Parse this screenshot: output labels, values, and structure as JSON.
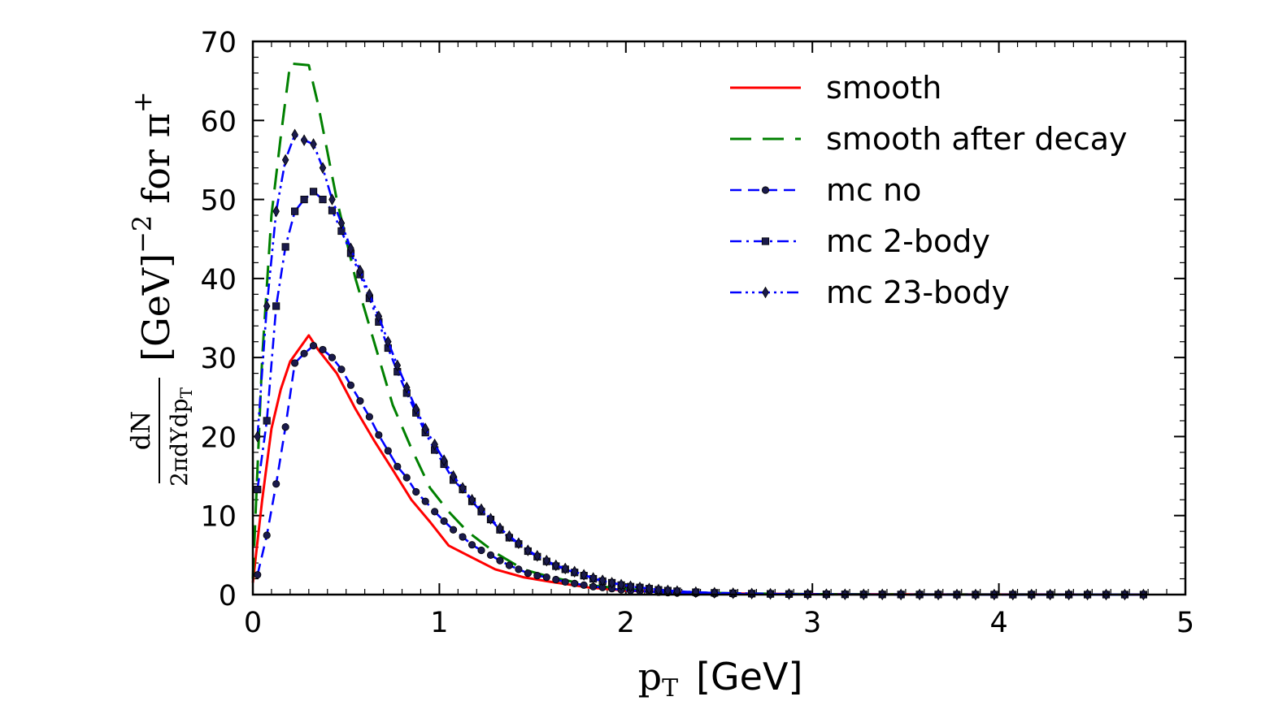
{
  "chart_data": {
    "type": "line",
    "xlabel": {
      "symbol": "p",
      "sub": "T",
      "unit": "[GeV]"
    },
    "ylabel": {
      "num": "dN",
      "den_main": "2πdYdp",
      "den_sub": "T",
      "unit": "[GeV]",
      "exp": "−2",
      "suffix": "for π",
      "suffix_sup": "+"
    },
    "xlim": [
      0,
      5
    ],
    "ylim": [
      0,
      70
    ],
    "xticks": [
      "0",
      "1",
      "2",
      "3",
      "4",
      "5"
    ],
    "yticks": [
      "0",
      "10",
      "20",
      "30",
      "40",
      "50",
      "60",
      "70"
    ],
    "grid": false,
    "legend_position": "top-right",
    "series": [
      {
        "name": "smooth",
        "color": "#ff0000",
        "style": "solid",
        "marker": "none",
        "x": [
          0.0,
          0.05,
          0.1,
          0.15,
          0.2,
          0.3,
          0.35,
          0.45,
          0.55,
          0.65,
          0.75,
          0.85,
          0.95,
          1.05,
          1.15,
          1.3,
          1.45,
          1.6,
          1.8,
          2.0,
          2.3,
          2.6,
          3.0,
          3.5,
          4.0,
          4.5,
          4.75
        ],
        "y": [
          1.5,
          12.0,
          21.0,
          26.0,
          29.5,
          32.8,
          31.0,
          28.0,
          23.5,
          19.5,
          15.8,
          12.0,
          9.2,
          6.2,
          5.0,
          3.2,
          2.2,
          1.6,
          0.9,
          0.5,
          0.25,
          0.12,
          0.05,
          0.02,
          0.01,
          0.0,
          0.0
        ]
      },
      {
        "name": "smooth after decay",
        "color": "#008000",
        "style": "longdash",
        "marker": "none",
        "x": [
          0.0,
          0.05,
          0.1,
          0.15,
          0.2,
          0.3,
          0.35,
          0.45,
          0.55,
          0.65,
          0.75,
          0.85,
          0.95,
          1.05,
          1.15,
          1.3,
          1.45,
          1.6,
          1.8,
          2.0,
          2.3,
          2.6,
          3.0,
          3.5,
          4.0,
          4.5,
          4.75
        ],
        "y": [
          2.0,
          30.0,
          48.0,
          58.0,
          67.2,
          67.0,
          62.0,
          50.0,
          40.0,
          32.0,
          24.0,
          18.5,
          13.5,
          10.5,
          8.0,
          5.3,
          3.2,
          2.2,
          1.2,
          0.7,
          0.3,
          0.15,
          0.05,
          0.02,
          0.01,
          0.0,
          0.0
        ]
      },
      {
        "name": "mc no",
        "color": "#0000ff",
        "style": "dash",
        "marker": "circle",
        "x": [
          0.025,
          0.075,
          0.125,
          0.175,
          0.225,
          0.275,
          0.325,
          0.375,
          0.425,
          0.475,
          0.525,
          0.575,
          0.625,
          0.675,
          0.725,
          0.775,
          0.825,
          0.875,
          0.925,
          0.975,
          1.025,
          1.075,
          1.125,
          1.175,
          1.225,
          1.275,
          1.325,
          1.375,
          1.425,
          1.475,
          1.525,
          1.575,
          1.625,
          1.675,
          1.725,
          1.775,
          1.825,
          1.875,
          1.925,
          1.975,
          2.025,
          2.075,
          2.125,
          2.175,
          2.225,
          2.275,
          2.375,
          2.475,
          2.575,
          2.675,
          2.775,
          2.875,
          2.975,
          3.075,
          3.175,
          3.275,
          3.375,
          3.475,
          3.575,
          3.675,
          3.775,
          3.875,
          3.975,
          4.075,
          4.175,
          4.275,
          4.375,
          4.475,
          4.575,
          4.675,
          4.775
        ],
        "y": [
          2.5,
          7.5,
          14.0,
          21.2,
          29.3,
          30.5,
          31.5,
          31.0,
          30.0,
          28.5,
          26.5,
          24.5,
          22.5,
          20.2,
          18.2,
          16.2,
          14.8,
          13.0,
          11.8,
          10.5,
          9.3,
          8.2,
          7.3,
          6.3,
          5.6,
          5.0,
          4.3,
          3.7,
          3.2,
          2.7,
          2.4,
          2.2,
          1.9,
          1.6,
          1.4,
          1.2,
          1.0,
          0.9,
          0.75,
          0.6,
          0.5,
          0.45,
          0.38,
          0.3,
          0.25,
          0.2,
          0.15,
          0.1,
          0.08,
          0.06,
          0.05,
          0.04,
          0.03,
          0.02,
          0.02,
          0.01,
          0.01,
          0.01,
          0.0,
          0.0,
          0.0,
          0.0,
          0.0,
          0.0,
          0.0,
          0.0,
          0.0,
          0.0,
          0.0,
          0.0,
          0.0
        ]
      },
      {
        "name": "mc 2-body",
        "color": "#0000ff",
        "style": "dashdot",
        "marker": "square",
        "x": [
          0.025,
          0.075,
          0.125,
          0.175,
          0.225,
          0.275,
          0.325,
          0.375,
          0.425,
          0.475,
          0.525,
          0.575,
          0.625,
          0.675,
          0.725,
          0.775,
          0.825,
          0.875,
          0.925,
          0.975,
          1.025,
          1.075,
          1.125,
          1.175,
          1.225,
          1.275,
          1.325,
          1.375,
          1.425,
          1.475,
          1.525,
          1.575,
          1.625,
          1.675,
          1.725,
          1.775,
          1.825,
          1.875,
          1.925,
          1.975,
          2.025,
          2.075,
          2.125,
          2.175,
          2.225,
          2.275,
          2.375,
          2.475,
          2.575,
          2.675,
          2.775,
          2.875,
          2.975,
          3.075,
          3.175,
          3.275,
          3.375,
          3.475,
          3.575,
          3.675,
          3.775,
          3.875,
          3.975,
          4.075,
          4.175,
          4.275,
          4.375,
          4.475,
          4.575,
          4.675,
          4.775
        ],
        "y": [
          13.3,
          22.0,
          36.5,
          44.0,
          48.5,
          50.0,
          51.0,
          50.0,
          48.6,
          46.0,
          43.2,
          40.5,
          37.5,
          34.5,
          31.2,
          28.2,
          25.5,
          23.0,
          20.5,
          18.3,
          16.5,
          14.5,
          13.3,
          11.8,
          10.5,
          9.5,
          8.2,
          7.2,
          6.4,
          5.5,
          4.8,
          4.2,
          3.6,
          3.2,
          2.8,
          2.4,
          2.0,
          1.7,
          1.5,
          1.2,
          1.0,
          0.9,
          0.75,
          0.6,
          0.5,
          0.42,
          0.3,
          0.22,
          0.16,
          0.12,
          0.09,
          0.07,
          0.05,
          0.04,
          0.03,
          0.02,
          0.02,
          0.01,
          0.01,
          0.01,
          0.0,
          0.0,
          0.0,
          0.0,
          0.0,
          0.0,
          0.0,
          0.0,
          0.0,
          0.0,
          0.0
        ]
      },
      {
        "name": "mc 23-body",
        "color": "#0000ff",
        "style": "dashdotdot",
        "marker": "diamond",
        "x": [
          0.025,
          0.075,
          0.125,
          0.175,
          0.225,
          0.275,
          0.325,
          0.375,
          0.425,
          0.475,
          0.525,
          0.575,
          0.625,
          0.675,
          0.725,
          0.775,
          0.825,
          0.875,
          0.925,
          0.975,
          1.025,
          1.075,
          1.125,
          1.175,
          1.225,
          1.275,
          1.325,
          1.375,
          1.425,
          1.475,
          1.525,
          1.575,
          1.625,
          1.675,
          1.725,
          1.775,
          1.825,
          1.875,
          1.925,
          1.975,
          2.025,
          2.075,
          2.125,
          2.175,
          2.225,
          2.275,
          2.375,
          2.475,
          2.575,
          2.675,
          2.775,
          2.875,
          2.975,
          3.075,
          3.175,
          3.275,
          3.375,
          3.475,
          3.575,
          3.675,
          3.775,
          3.875,
          3.975,
          4.075,
          4.175,
          4.275,
          4.375,
          4.475,
          4.575,
          4.675,
          4.775
        ],
        "y": [
          20.0,
          36.5,
          48.5,
          55.0,
          58.2,
          57.5,
          57.0,
          54.0,
          50.0,
          47.0,
          43.8,
          41.0,
          38.0,
          35.2,
          32.0,
          29.0,
          26.2,
          23.5,
          21.0,
          19.0,
          17.0,
          15.0,
          13.5,
          12.0,
          10.8,
          9.6,
          8.4,
          7.4,
          6.5,
          5.6,
          4.9,
          4.3,
          3.7,
          3.3,
          2.9,
          2.5,
          2.1,
          1.8,
          1.5,
          1.25,
          1.05,
          0.9,
          0.75,
          0.62,
          0.52,
          0.43,
          0.31,
          0.23,
          0.17,
          0.13,
          0.1,
          0.07,
          0.05,
          0.04,
          0.03,
          0.02,
          0.02,
          0.01,
          0.01,
          0.01,
          0.0,
          0.0,
          0.0,
          0.0,
          0.0,
          0.0,
          0.0,
          0.0,
          0.0,
          0.0,
          0.0
        ]
      }
    ]
  }
}
